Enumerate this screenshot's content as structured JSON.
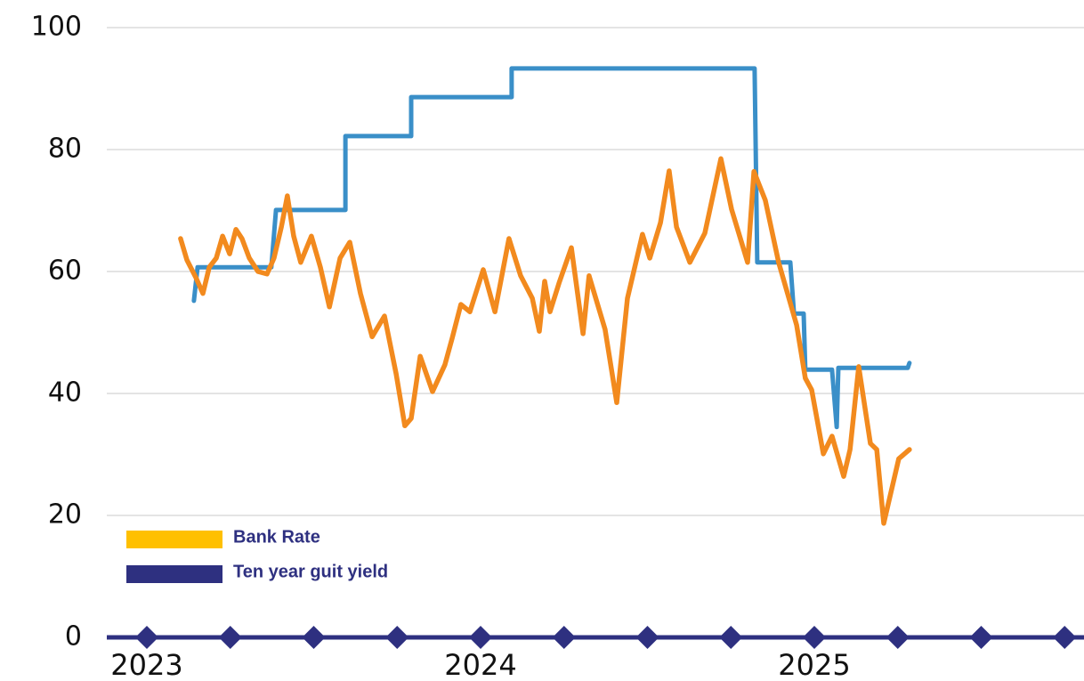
{
  "chart_data": {
    "type": "line",
    "xlim": [
      2022.88,
      2025.808
    ],
    "xticks": [
      2023,
      2024,
      2025
    ],
    "ylim": [
      0,
      100
    ],
    "yticks": [
      0,
      20,
      40,
      60,
      80,
      100
    ],
    "grid": true,
    "legend": [
      {
        "name": "Bank Rate",
        "color": "#ffc000"
      },
      {
        "name": "Ten year guit yield",
        "color": "#2e3080"
      }
    ],
    "series": [
      {
        "color": "#3a8fc8",
        "step": true,
        "x": [
          2023.141,
          2023.152,
          2023.373,
          2023.387,
          2023.595,
          2023.595,
          2023.792,
          2023.792,
          2024.093,
          2024.093,
          2024.821,
          2024.829,
          2024.928,
          2024.939,
          2024.968,
          2024.973,
          2025.053,
          2025.067,
          2025.072,
          2025.28,
          2025.285
        ],
        "values": [
          55.2,
          60.7,
          60.7,
          70.1,
          70.1,
          82.2,
          82.2,
          88.6,
          88.6,
          93.3,
          93.3,
          61.5,
          61.5,
          53.1,
          53.1,
          43.9,
          43.9,
          34.5,
          44.2,
          44.2,
          45.0
        ]
      },
      {
        "color": "#f28a1e",
        "x": [
          2023.101,
          2023.12,
          2023.147,
          2023.168,
          2023.187,
          2023.208,
          2023.227,
          2023.248,
          2023.267,
          2023.285,
          2023.307,
          2023.333,
          2023.36,
          2023.381,
          2023.403,
          2023.421,
          2023.44,
          2023.461,
          2023.493,
          2023.52,
          2023.547,
          2023.579,
          2023.608,
          2023.64,
          2023.675,
          2023.712,
          2023.747,
          2023.773,
          2023.792,
          2023.819,
          2023.856,
          2023.893,
          2023.915,
          2023.941,
          2023.968,
          2024.008,
          2024.043,
          2024.085,
          2024.12,
          2024.155,
          2024.176,
          2024.192,
          2024.208,
          2024.235,
          2024.272,
          2024.307,
          2024.325,
          2024.373,
          2024.408,
          2024.44,
          2024.485,
          2024.507,
          2024.539,
          2024.565,
          2024.587,
          2024.627,
          2024.672,
          2024.72,
          2024.752,
          2024.8,
          2024.819,
          2024.853,
          2024.893,
          2024.947,
          2024.973,
          2024.992,
          2025.027,
          2025.053,
          2025.088,
          2025.107,
          2025.133,
          2025.168,
          2025.187,
          2025.208,
          2025.253,
          2025.285
        ],
        "values": [
          65.4,
          61.9,
          59,
          56.4,
          60.7,
          62.2,
          65.8,
          62.9,
          66.9,
          65.4,
          62.2,
          60,
          59.6,
          62.2,
          67.3,
          72.4,
          65.8,
          61.5,
          65.8,
          60.7,
          54.2,
          62.2,
          64.8,
          56.4,
          49.3,
          52.7,
          43.2,
          34.7,
          35.9,
          46.1,
          40.3,
          44.7,
          49.1,
          54.6,
          53.4,
          60.3,
          53.4,
          65.4,
          59.3,
          55.6,
          50.2,
          58.4,
          53.4,
          58.1,
          63.9,
          49.8,
          59.3,
          50.5,
          38.5,
          55.6,
          66.1,
          62.2,
          68,
          76.5,
          67.3,
          61.5,
          66.3,
          78.5,
          70.2,
          61.5,
          76.4,
          71.7,
          61.5,
          51.2,
          42.5,
          40.6,
          30.1,
          33,
          26.4,
          30.8,
          44.4,
          31.8,
          30.8,
          18.7,
          29.3,
          30.8
        ]
      },
      {
        "color": "#2e3080",
        "marker": "diamond",
        "x": [
          2023,
          2023.25,
          2023.5,
          2023.75,
          2024,
          2024.25,
          2024.5,
          2024.75,
          2025,
          2025.25,
          2025.5,
          2025.75
        ],
        "values": [
          0,
          0,
          0,
          0,
          0,
          0,
          0,
          0,
          0,
          0,
          0,
          0
        ]
      }
    ]
  }
}
